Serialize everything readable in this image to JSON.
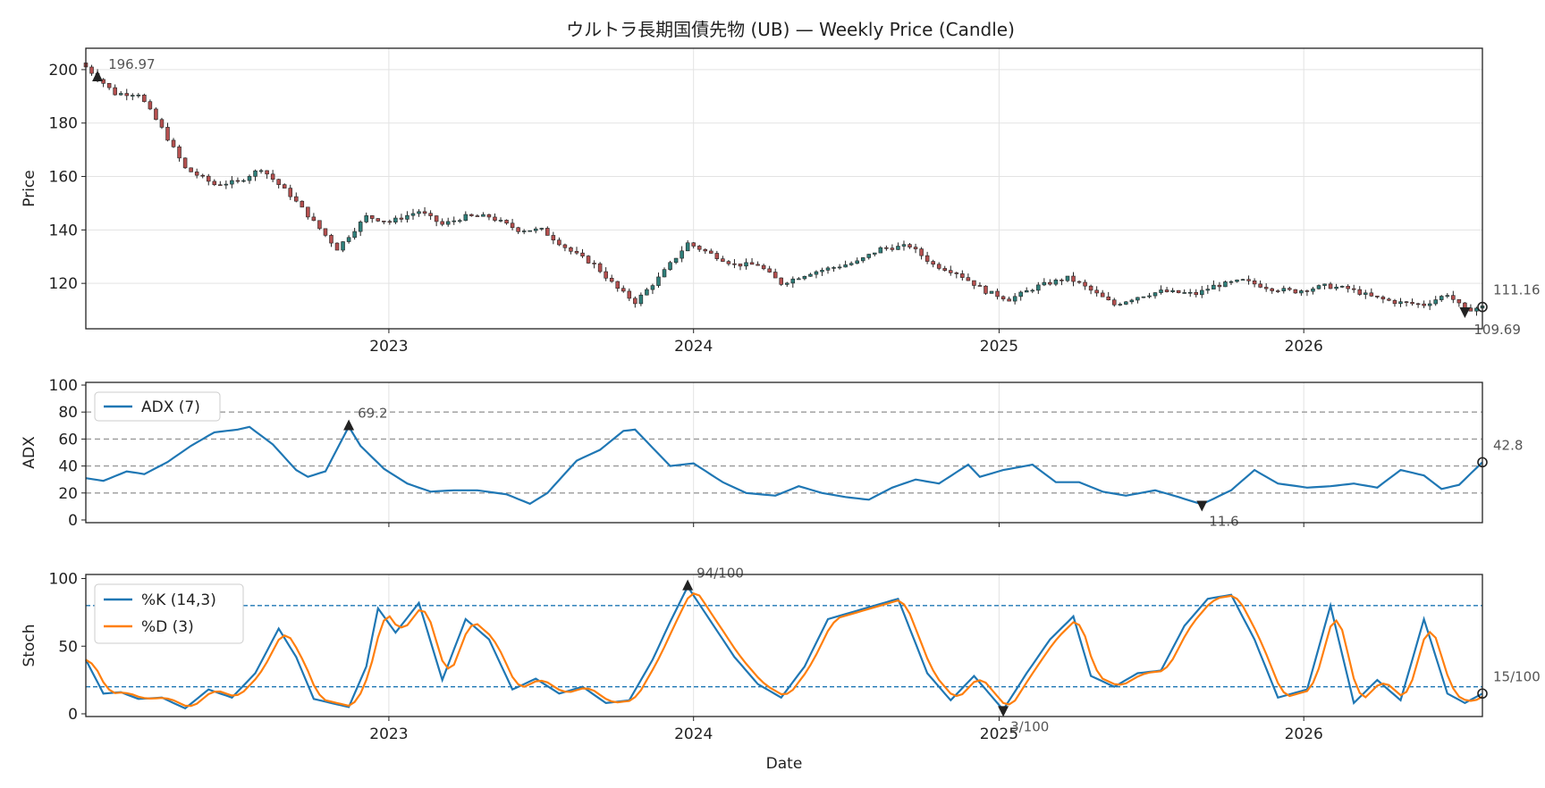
{
  "chart_data": [
    {
      "type": "candlestick",
      "title": "ウルトラ長期国債先物 (UB) — Weekly Price (Candle)",
      "ylabel": "Price",
      "xlabel": "",
      "xlim": [
        "2022-01-03",
        "2026-08-03"
      ],
      "ylim": [
        103,
        208
      ],
      "yticks": [
        120,
        140,
        160,
        180,
        200
      ],
      "xticks": [
        "2023",
        "2024",
        "2025",
        "2026"
      ],
      "grid": true,
      "up_color": "#2f7f7a",
      "down_color": "#b5504f",
      "annotations": [
        {
          "label": "196.97",
          "kind": "max",
          "date": "2022-01-17",
          "value": 196.97
        },
        {
          "label": "109.69",
          "kind": "min",
          "date": "2026-07-13",
          "value": 109.69
        },
        {
          "label": "111.16",
          "kind": "last",
          "date": "2026-08-03",
          "value": 111.16
        }
      ],
      "anchors": [
        [
          "2022-01-03",
          201
        ],
        [
          "2022-02-07",
          191
        ],
        [
          "2022-03-07",
          191
        ],
        [
          "2022-04-04",
          178
        ],
        [
          "2022-05-02",
          163
        ],
        [
          "2022-06-06",
          157
        ],
        [
          "2022-07-04",
          158
        ],
        [
          "2022-08-01",
          163
        ],
        [
          "2022-09-05",
          153
        ],
        [
          "2022-10-03",
          143
        ],
        [
          "2022-10-31",
          133
        ],
        [
          "2022-12-05",
          145
        ],
        [
          "2023-01-02",
          143
        ],
        [
          "2023-02-06",
          147
        ],
        [
          "2023-03-06",
          142
        ],
        [
          "2023-04-03",
          145
        ],
        [
          "2023-05-01",
          145
        ],
        [
          "2023-06-05",
          140
        ],
        [
          "2023-07-03",
          140
        ],
        [
          "2023-08-07",
          132
        ],
        [
          "2023-09-04",
          127
        ],
        [
          "2023-10-02",
          118
        ],
        [
          "2023-10-23",
          113
        ],
        [
          "2023-11-20",
          122
        ],
        [
          "2023-12-25",
          135
        ],
        [
          "2024-01-22",
          131
        ],
        [
          "2024-02-19",
          127
        ],
        [
          "2024-03-18",
          127
        ],
        [
          "2024-04-15",
          120
        ],
        [
          "2024-05-20",
          124
        ],
        [
          "2024-06-17",
          126
        ],
        [
          "2024-07-15",
          128
        ],
        [
          "2024-08-12",
          133
        ],
        [
          "2024-09-16",
          134
        ],
        [
          "2024-10-14",
          127
        ],
        [
          "2024-11-11",
          124
        ],
        [
          "2024-12-16",
          117
        ],
        [
          "2025-01-13",
          114
        ],
        [
          "2025-02-17",
          119
        ],
        [
          "2025-03-24",
          122
        ],
        [
          "2025-04-07",
          120
        ],
        [
          "2025-05-19",
          112
        ],
        [
          "2025-06-16",
          115
        ],
        [
          "2025-07-14",
          117
        ],
        [
          "2025-08-25",
          116
        ],
        [
          "2025-09-15",
          119
        ],
        [
          "2025-10-20",
          121
        ],
        [
          "2025-11-24",
          118
        ],
        [
          "2025-12-22",
          117
        ],
        [
          "2026-01-26",
          119
        ],
        [
          "2026-02-23",
          118
        ],
        [
          "2026-03-23",
          115
        ],
        [
          "2026-04-20",
          113
        ],
        [
          "2026-05-25",
          112
        ],
        [
          "2026-06-22",
          116
        ],
        [
          "2026-07-13",
          110
        ],
        [
          "2026-08-03",
          111.16
        ]
      ]
    },
    {
      "type": "line",
      "ylabel": "ADX",
      "ylim": [
        -2,
        102
      ],
      "yticks": [
        0,
        20,
        40,
        60,
        80,
        100
      ],
      "hlines": [
        20,
        40,
        60,
        80
      ],
      "legend": "top-left",
      "series": [
        {
          "name": "ADX (7)",
          "color": "#1f77b4"
        }
      ],
      "annotations": [
        {
          "label": "69.2",
          "kind": "max",
          "date": "2022-11-14",
          "value": 69.2
        },
        {
          "label": "11.6",
          "kind": "min",
          "date": "2025-09-01",
          "value": 11.6
        },
        {
          "label": "42.8",
          "kind": "last",
          "date": "2026-08-03",
          "value": 42.8
        }
      ],
      "anchors": [
        [
          "2022-01-03",
          31
        ],
        [
          "2022-01-24",
          29
        ],
        [
          "2022-02-21",
          36
        ],
        [
          "2022-03-14",
          34
        ],
        [
          "2022-04-11",
          43
        ],
        [
          "2022-05-09",
          55
        ],
        [
          "2022-06-06",
          65
        ],
        [
          "2022-07-04",
          67
        ],
        [
          "2022-07-18",
          69
        ],
        [
          "2022-08-15",
          56
        ],
        [
          "2022-09-12",
          37
        ],
        [
          "2022-09-26",
          32
        ],
        [
          "2022-10-17",
          36
        ],
        [
          "2022-11-14",
          69.2
        ],
        [
          "2022-11-28",
          55
        ],
        [
          "2022-12-26",
          38
        ],
        [
          "2023-01-23",
          27
        ],
        [
          "2023-02-20",
          21
        ],
        [
          "2023-03-20",
          22
        ],
        [
          "2023-04-17",
          22
        ],
        [
          "2023-05-22",
          19
        ],
        [
          "2023-06-19",
          12
        ],
        [
          "2023-07-10",
          20
        ],
        [
          "2023-08-14",
          44
        ],
        [
          "2023-09-11",
          52
        ],
        [
          "2023-10-09",
          66
        ],
        [
          "2023-10-23",
          67
        ],
        [
          "2023-12-04",
          40
        ],
        [
          "2024-01-01",
          42
        ],
        [
          "2024-02-05",
          28
        ],
        [
          "2024-03-04",
          20
        ],
        [
          "2024-04-08",
          18
        ],
        [
          "2024-05-06",
          25
        ],
        [
          "2024-06-03",
          20
        ],
        [
          "2024-07-01",
          17
        ],
        [
          "2024-07-29",
          15
        ],
        [
          "2024-08-26",
          24
        ],
        [
          "2024-09-23",
          30
        ],
        [
          "2024-10-21",
          27
        ],
        [
          "2024-11-25",
          41
        ],
        [
          "2024-12-09",
          32
        ],
        [
          "2025-01-06",
          37
        ],
        [
          "2025-02-10",
          41
        ],
        [
          "2025-03-10",
          28
        ],
        [
          "2025-04-07",
          28
        ],
        [
          "2025-05-05",
          21
        ],
        [
          "2025-06-02",
          18
        ],
        [
          "2025-07-07",
          22
        ],
        [
          "2025-08-04",
          17
        ],
        [
          "2025-09-01",
          11.6
        ],
        [
          "2025-10-06",
          22
        ],
        [
          "2025-11-03",
          37
        ],
        [
          "2025-12-01",
          27
        ],
        [
          "2026-01-05",
          24
        ],
        [
          "2026-02-02",
          25
        ],
        [
          "2026-03-02",
          27
        ],
        [
          "2026-03-30",
          24
        ],
        [
          "2026-04-27",
          37
        ],
        [
          "2026-05-25",
          33
        ],
        [
          "2026-06-15",
          23
        ],
        [
          "2026-07-06",
          26
        ],
        [
          "2026-08-03",
          42.8
        ]
      ]
    },
    {
      "type": "line",
      "xlabel": "Date",
      "ylabel": "Stoch",
      "ylim": [
        -2,
        103
      ],
      "yticks": [
        0,
        50,
        100
      ],
      "hlines": [
        20,
        80
      ],
      "legend": "top-left",
      "series": [
        {
          "name": "%K (14,3)",
          "color": "#1f77b4"
        },
        {
          "name": "%D (3)",
          "color": "#ff7f0e"
        }
      ],
      "annotations": [
        {
          "label": "94/100",
          "kind": "max",
          "date": "2023-12-25",
          "value": 94
        },
        {
          "label": "3/100",
          "kind": "min",
          "date": "2025-01-06",
          "value": 3
        },
        {
          "label": "15/100",
          "kind": "last",
          "date": "2026-08-03",
          "value": 15
        }
      ],
      "k_anchors": [
        [
          "2022-01-03",
          40
        ],
        [
          "2022-01-24",
          15
        ],
        [
          "2022-02-14",
          16
        ],
        [
          "2022-03-07",
          11
        ],
        [
          "2022-04-04",
          12
        ],
        [
          "2022-05-02",
          4
        ],
        [
          "2022-05-30",
          18
        ],
        [
          "2022-06-27",
          12
        ],
        [
          "2022-07-25",
          30
        ],
        [
          "2022-08-22",
          63
        ],
        [
          "2022-09-12",
          42
        ],
        [
          "2022-10-03",
          11
        ],
        [
          "2022-10-24",
          8
        ],
        [
          "2022-11-14",
          5
        ],
        [
          "2022-12-05",
          35
        ],
        [
          "2022-12-19",
          78
        ],
        [
          "2023-01-09",
          60
        ],
        [
          "2023-02-06",
          82
        ],
        [
          "2023-03-06",
          25
        ],
        [
          "2023-04-03",
          70
        ],
        [
          "2023-05-01",
          55
        ],
        [
          "2023-05-29",
          18
        ],
        [
          "2023-06-26",
          26
        ],
        [
          "2023-07-24",
          15
        ],
        [
          "2023-08-21",
          20
        ],
        [
          "2023-09-18",
          8
        ],
        [
          "2023-10-16",
          10
        ],
        [
          "2023-11-13",
          40
        ],
        [
          "2023-12-04",
          68
        ],
        [
          "2023-12-25",
          94
        ],
        [
          "2024-01-22",
          68
        ],
        [
          "2024-02-19",
          42
        ],
        [
          "2024-03-18",
          22
        ],
        [
          "2024-04-15",
          12
        ],
        [
          "2024-05-13",
          35
        ],
        [
          "2024-06-10",
          70
        ],
        [
          "2024-07-08",
          75
        ],
        [
          "2024-08-05",
          80
        ],
        [
          "2024-09-02",
          85
        ],
        [
          "2024-10-07",
          30
        ],
        [
          "2024-11-04",
          10
        ],
        [
          "2024-12-02",
          28
        ],
        [
          "2025-01-06",
          3
        ],
        [
          "2025-02-03",
          30
        ],
        [
          "2025-03-03",
          55
        ],
        [
          "2025-03-31",
          72
        ],
        [
          "2025-04-21",
          28
        ],
        [
          "2025-05-19",
          20
        ],
        [
          "2025-06-16",
          30
        ],
        [
          "2025-07-14",
          32
        ],
        [
          "2025-08-11",
          65
        ],
        [
          "2025-09-08",
          85
        ],
        [
          "2025-10-06",
          88
        ],
        [
          "2025-11-03",
          55
        ],
        [
          "2025-12-01",
          12
        ],
        [
          "2026-01-05",
          18
        ],
        [
          "2026-02-02",
          80
        ],
        [
          "2026-03-02",
          8
        ],
        [
          "2026-03-30",
          25
        ],
        [
          "2026-04-27",
          10
        ],
        [
          "2026-05-25",
          70
        ],
        [
          "2026-06-22",
          15
        ],
        [
          "2026-07-13",
          8
        ],
        [
          "2026-08-03",
          15
        ]
      ]
    }
  ]
}
